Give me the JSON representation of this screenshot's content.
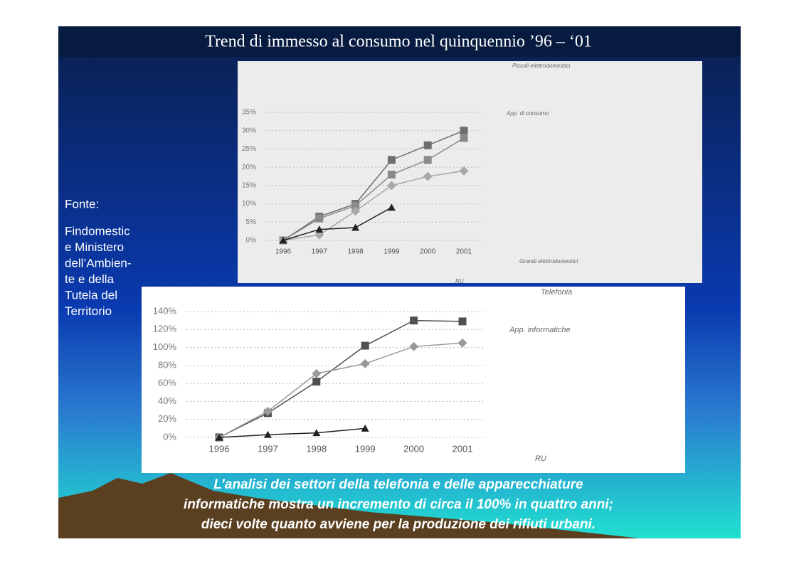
{
  "slide": {
    "title": "Trend di immesso al consumo nel quinquennio ’96 – ‘01",
    "source_label": "Fonte:",
    "source_lines": [
      "Findomestic",
      "e Ministero",
      "dell’Ambien-",
      "te e della",
      "Tutela del",
      "Territorio"
    ],
    "caption_lines": [
      "L’analisi dei settori della telefonia e delle apparecchiature",
      "informatiche mostra un incremento di circa il 100% in quattro anni;",
      "dieci volte quanto avviene per la produzione dei rifiuti urbani."
    ]
  },
  "chart_data": [
    {
      "type": "line",
      "categories": [
        "1996",
        "1997",
        "1998",
        "1999",
        "2000",
        "2001"
      ],
      "ylim": [
        0,
        35
      ],
      "yticks": [
        {
          "value": 0,
          "label": "0%"
        },
        {
          "value": 5,
          "label": "5%"
        },
        {
          "value": 10,
          "label": "10%"
        },
        {
          "value": 15,
          "label": "15%"
        },
        {
          "value": 20,
          "label": "20%"
        },
        {
          "value": 25,
          "label": "25%"
        },
        {
          "value": 30,
          "label": "30%"
        },
        {
          "value": 35,
          "label": "35%"
        }
      ],
      "grid": true,
      "series": [
        {
          "name": "Piccoli elettrodomestici",
          "color": "#6e6e6e",
          "marker": "square",
          "values": [
            0,
            6.5,
            10,
            22,
            26,
            30
          ]
        },
        {
          "name": "App. di consumo",
          "color": "#8a8a8a",
          "marker": "square",
          "values": [
            0,
            6,
            9.5,
            18,
            22,
            28
          ]
        },
        {
          "name": "Grandi elettrodomestici",
          "color": "#a8a8a8",
          "marker": "diamond",
          "values": [
            0,
            1.5,
            8,
            15,
            17.5,
            19
          ]
        },
        {
          "name": "RU",
          "color": "#222222",
          "marker": "triangle",
          "values": [
            0,
            3,
            3.5,
            9,
            null,
            null
          ]
        }
      ]
    },
    {
      "type": "line",
      "categories": [
        "1996",
        "1997",
        "1998",
        "1999",
        "2000",
        "2001"
      ],
      "ylim": [
        0,
        140
      ],
      "yticks": [
        {
          "value": 0,
          "label": "0%"
        },
        {
          "value": 20,
          "label": "20%"
        },
        {
          "value": 40,
          "label": "40%"
        },
        {
          "value": 60,
          "label": "60%"
        },
        {
          "value": 80,
          "label": "80%"
        },
        {
          "value": 100,
          "label": "100%"
        },
        {
          "value": 120,
          "label": "120%"
        },
        {
          "value": 140,
          "label": "140%"
        }
      ],
      "grid": true,
      "series": [
        {
          "name": "Telefonia",
          "color": "#505050",
          "marker": "square",
          "values": [
            0,
            27,
            62,
            102,
            130,
            129
          ]
        },
        {
          "name": "App. informatiche",
          "color": "#9a9a9a",
          "marker": "diamond",
          "values": [
            0,
            29,
            71,
            82,
            101,
            105
          ]
        },
        {
          "name": "RU",
          "color": "#222222",
          "marker": "triangle",
          "values": [
            0,
            3,
            5,
            10,
            null,
            null
          ]
        }
      ]
    }
  ]
}
